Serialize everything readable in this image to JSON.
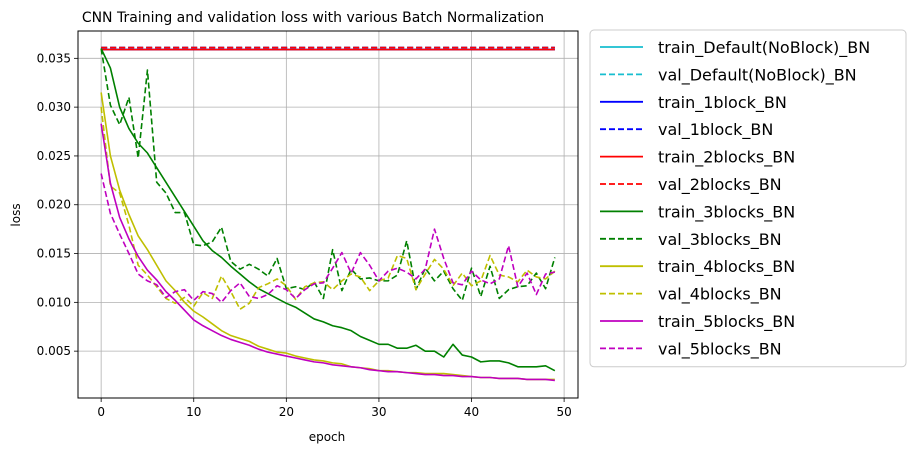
{
  "chart_data": {
    "type": "line",
    "title": "CNN Training and validation loss with various Batch Normalization",
    "xlabel": "epoch",
    "ylabel": "loss",
    "xlim": [
      -2.5,
      51.5
    ],
    "ylim": [
      0.0002,
      0.0378
    ],
    "xticks": [
      0,
      10,
      20,
      30,
      40,
      50
    ],
    "xtick_labels": [
      "0",
      "10",
      "20",
      "30",
      "40",
      "50"
    ],
    "yticks": [
      0.005,
      0.01,
      0.015,
      0.02,
      0.025,
      0.03,
      0.035
    ],
    "ytick_labels": [
      "0.005",
      "0.010",
      "0.015",
      "0.020",
      "0.025",
      "0.030",
      "0.035"
    ],
    "grid": true,
    "legend_position": "outside-right",
    "series": [
      {
        "name": "train_Default(NoBlock)_BN",
        "color": "#17becf",
        "dash": false,
        "values": [
          0.0359,
          0.0359,
          0.0359,
          0.0359,
          0.0359,
          0.0359,
          0.0359,
          0.0359,
          0.0359,
          0.0359,
          0.0359,
          0.0359,
          0.0359,
          0.0359,
          0.0359,
          0.0359,
          0.0359,
          0.0359,
          0.0359,
          0.0359,
          0.0359,
          0.0359,
          0.0359,
          0.0359,
          0.0359,
          0.0359,
          0.0359,
          0.0359,
          0.0359,
          0.0359,
          0.0359,
          0.0359,
          0.0359,
          0.0359,
          0.0359,
          0.0359,
          0.0359,
          0.0359,
          0.0359,
          0.0359,
          0.0359,
          0.0359,
          0.0359,
          0.0359,
          0.0359,
          0.0359,
          0.0359,
          0.0359,
          0.0359,
          0.0359
        ]
      },
      {
        "name": "val_Default(NoBlock)_BN",
        "color": "#17becf",
        "dash": true,
        "values": [
          0.0361,
          0.0361,
          0.0361,
          0.0361,
          0.0361,
          0.0361,
          0.0361,
          0.0361,
          0.0361,
          0.0361,
          0.0361,
          0.0361,
          0.0361,
          0.0361,
          0.0361,
          0.0361,
          0.0361,
          0.0361,
          0.0361,
          0.0361,
          0.0361,
          0.0361,
          0.0361,
          0.0361,
          0.0361,
          0.0361,
          0.0361,
          0.0361,
          0.0361,
          0.0361,
          0.0361,
          0.0361,
          0.0361,
          0.0361,
          0.0361,
          0.0361,
          0.0361,
          0.0361,
          0.0361,
          0.0361,
          0.0361,
          0.0361,
          0.0361,
          0.0361,
          0.0361,
          0.0361,
          0.0361,
          0.0361,
          0.0361,
          0.0361
        ]
      },
      {
        "name": "train_1block_BN",
        "color": "#0000ff",
        "dash": false,
        "values": [
          0.0359,
          0.0359,
          0.0359,
          0.0359,
          0.0359,
          0.0359,
          0.0359,
          0.0359,
          0.0359,
          0.0359,
          0.0359,
          0.0359,
          0.0359,
          0.0359,
          0.0359,
          0.0359,
          0.0359,
          0.0359,
          0.0359,
          0.0359,
          0.0359,
          0.0359,
          0.0359,
          0.0359,
          0.0359,
          0.0359,
          0.0359,
          0.0359,
          0.0359,
          0.0359,
          0.0359,
          0.0359,
          0.0359,
          0.0359,
          0.0359,
          0.0359,
          0.0359,
          0.0359,
          0.0359,
          0.0359,
          0.0359,
          0.0359,
          0.0359,
          0.0359,
          0.0359,
          0.0359,
          0.0359,
          0.0359,
          0.0359,
          0.0359
        ]
      },
      {
        "name": "val_1block_BN",
        "color": "#0000ff",
        "dash": true,
        "values": [
          0.0361,
          0.0361,
          0.0361,
          0.0361,
          0.0361,
          0.0361,
          0.0361,
          0.0361,
          0.0361,
          0.0361,
          0.0361,
          0.0361,
          0.0361,
          0.0361,
          0.0361,
          0.0361,
          0.0361,
          0.0361,
          0.0361,
          0.0361,
          0.0361,
          0.0361,
          0.0361,
          0.0361,
          0.0361,
          0.0361,
          0.0361,
          0.0361,
          0.0361,
          0.0361,
          0.0361,
          0.0361,
          0.0361,
          0.0361,
          0.0361,
          0.0361,
          0.0361,
          0.0361,
          0.0361,
          0.0361,
          0.0361,
          0.0361,
          0.0361,
          0.0361,
          0.0361,
          0.0361,
          0.0361,
          0.0361,
          0.0361,
          0.0361
        ]
      },
      {
        "name": "train_2blocks_BN",
        "color": "#ff0000",
        "dash": false,
        "values": [
          0.0359,
          0.0359,
          0.0359,
          0.0359,
          0.0359,
          0.0359,
          0.0359,
          0.0359,
          0.0359,
          0.0359,
          0.0359,
          0.0359,
          0.0359,
          0.0359,
          0.0359,
          0.0359,
          0.0359,
          0.0359,
          0.0359,
          0.0359,
          0.0359,
          0.0359,
          0.0359,
          0.0359,
          0.0359,
          0.0359,
          0.0359,
          0.0359,
          0.0359,
          0.0359,
          0.0359,
          0.0359,
          0.0359,
          0.0359,
          0.0359,
          0.0359,
          0.0359,
          0.0359,
          0.0359,
          0.0359,
          0.0359,
          0.0359,
          0.0359,
          0.0359,
          0.0359,
          0.0359,
          0.0359,
          0.0359,
          0.0359,
          0.0359
        ]
      },
      {
        "name": "val_2blocks_BN",
        "color": "#ff0000",
        "dash": true,
        "values": [
          0.0361,
          0.0361,
          0.0361,
          0.0361,
          0.0361,
          0.0361,
          0.0361,
          0.0361,
          0.0361,
          0.0361,
          0.0361,
          0.0361,
          0.0361,
          0.0361,
          0.0361,
          0.0361,
          0.0361,
          0.0361,
          0.0361,
          0.0361,
          0.0361,
          0.0361,
          0.0361,
          0.0361,
          0.0361,
          0.0361,
          0.0361,
          0.0361,
          0.0361,
          0.0361,
          0.0361,
          0.0361,
          0.0361,
          0.0361,
          0.0361,
          0.0361,
          0.0361,
          0.0361,
          0.0361,
          0.0361,
          0.0361,
          0.0361,
          0.0361,
          0.0361,
          0.0361,
          0.0361,
          0.0361,
          0.0361,
          0.0361,
          0.0361
        ]
      },
      {
        "name": "train_3blocks_BN",
        "color": "#008000",
        "dash": false,
        "values": [
          0.036,
          0.034,
          0.03,
          0.0278,
          0.0263,
          0.0253,
          0.0238,
          0.0223,
          0.0208,
          0.0193,
          0.0178,
          0.0163,
          0.0153,
          0.0146,
          0.0137,
          0.0129,
          0.0121,
          0.0114,
          0.0109,
          0.0104,
          0.0099,
          0.0095,
          0.0089,
          0.0083,
          0.008,
          0.0076,
          0.0074,
          0.0071,
          0.0065,
          0.0061,
          0.0057,
          0.0057,
          0.0053,
          0.0053,
          0.0056,
          0.005,
          0.005,
          0.0044,
          0.0057,
          0.0046,
          0.0044,
          0.0039,
          0.004,
          0.004,
          0.0038,
          0.0034,
          0.0034,
          0.0034,
          0.0035,
          0.003
        ]
      },
      {
        "name": "val_3blocks_BN",
        "color": "#008000",
        "dash": true,
        "values": [
          0.036,
          0.0302,
          0.0282,
          0.031,
          0.0248,
          0.0338,
          0.0223,
          0.0212,
          0.0192,
          0.0192,
          0.0159,
          0.0158,
          0.0162,
          0.0177,
          0.0142,
          0.0134,
          0.0139,
          0.0134,
          0.0127,
          0.0145,
          0.0114,
          0.0116,
          0.0113,
          0.0121,
          0.0104,
          0.0154,
          0.0112,
          0.0134,
          0.0124,
          0.0125,
          0.0122,
          0.0122,
          0.0128,
          0.0163,
          0.0113,
          0.0135,
          0.0122,
          0.0132,
          0.0114,
          0.0102,
          0.0135,
          0.0106,
          0.0137,
          0.0104,
          0.0113,
          0.0116,
          0.0117,
          0.013,
          0.0114,
          0.0146
        ]
      },
      {
        "name": "train_4blocks_BN",
        "color": "#bfbf00",
        "dash": false,
        "values": [
          0.0315,
          0.025,
          0.0215,
          0.019,
          0.0168,
          0.0154,
          0.0138,
          0.0122,
          0.0112,
          0.01,
          0.0091,
          0.0085,
          0.0078,
          0.0071,
          0.0066,
          0.0063,
          0.006,
          0.0055,
          0.0052,
          0.0049,
          0.0048,
          0.0045,
          0.0043,
          0.0041,
          0.004,
          0.0038,
          0.0037,
          0.0034,
          0.0033,
          0.0032,
          0.003,
          0.003,
          0.0029,
          0.0028,
          0.0028,
          0.0027,
          0.0027,
          0.0027,
          0.0026,
          0.0025,
          0.0024,
          0.0023,
          0.0023,
          0.0022,
          0.0022,
          0.0022,
          0.0021,
          0.0021,
          0.0021,
          0.0021
        ]
      },
      {
        "name": "val_4blocks_BN",
        "color": "#bfbf00",
        "dash": true,
        "values": [
          0.03,
          0.0219,
          0.0212,
          0.0179,
          0.0138,
          0.0128,
          0.0116,
          0.0104,
          0.0099,
          0.0105,
          0.0096,
          0.011,
          0.0104,
          0.0127,
          0.0111,
          0.0093,
          0.0099,
          0.0115,
          0.0119,
          0.0124,
          0.0117,
          0.0103,
          0.0116,
          0.012,
          0.0121,
          0.0113,
          0.0122,
          0.0129,
          0.0126,
          0.0112,
          0.0122,
          0.0125,
          0.0148,
          0.0145,
          0.0113,
          0.0129,
          0.0144,
          0.0134,
          0.0117,
          0.013,
          0.0117,
          0.0122,
          0.0148,
          0.0128,
          0.0126,
          0.0121,
          0.0133,
          0.0126,
          0.0124,
          0.0132
        ]
      },
      {
        "name": "train_5blocks_BN",
        "color": "#bf00bf",
        "dash": false,
        "values": [
          0.0283,
          0.0222,
          0.0187,
          0.0165,
          0.0147,
          0.0133,
          0.0123,
          0.0111,
          0.0102,
          0.0092,
          0.0082,
          0.0076,
          0.0071,
          0.0066,
          0.0062,
          0.0059,
          0.0056,
          0.0052,
          0.0049,
          0.0047,
          0.0045,
          0.0043,
          0.0041,
          0.0039,
          0.0038,
          0.0036,
          0.0035,
          0.0034,
          0.0033,
          0.0031,
          0.003,
          0.0029,
          0.0029,
          0.0028,
          0.0027,
          0.0026,
          0.0026,
          0.0025,
          0.0025,
          0.0024,
          0.0024,
          0.0023,
          0.0023,
          0.0022,
          0.0022,
          0.0022,
          0.0021,
          0.0021,
          0.0021,
          0.002
        ]
      },
      {
        "name": "val_5blocks_BN",
        "color": "#bf00bf",
        "dash": true,
        "values": [
          0.0232,
          0.0191,
          0.017,
          0.015,
          0.0129,
          0.0122,
          0.0118,
          0.0105,
          0.0111,
          0.0113,
          0.0102,
          0.0111,
          0.0109,
          0.01,
          0.0112,
          0.012,
          0.0106,
          0.0104,
          0.0108,
          0.0117,
          0.0113,
          0.0104,
          0.0113,
          0.0119,
          0.012,
          0.0135,
          0.0151,
          0.013,
          0.0151,
          0.0138,
          0.0122,
          0.0132,
          0.0135,
          0.0131,
          0.0124,
          0.0134,
          0.0175,
          0.0145,
          0.012,
          0.0118,
          0.0132,
          0.0123,
          0.0119,
          0.0124,
          0.0158,
          0.0116,
          0.013,
          0.0108,
          0.0129,
          0.0131
        ]
      }
    ]
  }
}
